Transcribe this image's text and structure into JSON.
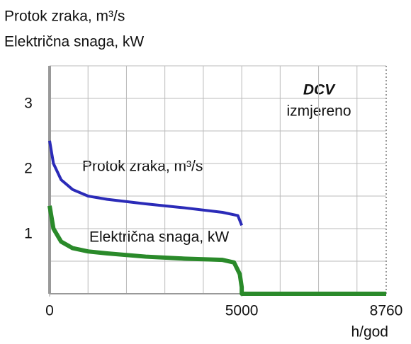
{
  "chart_data": {
    "type": "line",
    "title_lines": [
      "Protok zraka, m³/s",
      "Električna snaga, kW"
    ],
    "xlabel": "h/god",
    "annotations": [
      "DCV",
      "izmjereno",
      "Protok zraka, m³/s",
      "Električna snaga, kW"
    ],
    "xlim": [
      0,
      8760
    ],
    "xticks": [
      0,
      5000,
      8760
    ],
    "xgrid": [
      1000,
      2000,
      3000,
      4000,
      5000,
      6000,
      7000,
      8000
    ],
    "ylim": [
      0,
      3.5
    ],
    "yticks": [
      1,
      2,
      3
    ],
    "ygrid": [
      0.5,
      1,
      1.5,
      2,
      2.5,
      3,
      3.5
    ],
    "grid": true,
    "series": [
      {
        "name": "Protok zraka, m³/s",
        "color": "#2b2bb8",
        "x": [
          0,
          100,
          300,
          600,
          1000,
          1500,
          2500,
          3500,
          4500,
          4900,
          5000
        ],
        "values": [
          2.35,
          2.0,
          1.75,
          1.6,
          1.5,
          1.45,
          1.38,
          1.32,
          1.25,
          1.2,
          1.05
        ]
      },
      {
        "name": "Električna snaga, kW",
        "color": "#2a8a2a",
        "x": [
          0,
          100,
          300,
          600,
          1000,
          1500,
          2500,
          3500,
          4500,
          4800,
          4950,
          5000,
          5000,
          8760
        ],
        "values": [
          1.35,
          1.0,
          0.8,
          0.7,
          0.65,
          0.62,
          0.57,
          0.54,
          0.52,
          0.48,
          0.3,
          0.1,
          0,
          0
        ]
      }
    ]
  }
}
